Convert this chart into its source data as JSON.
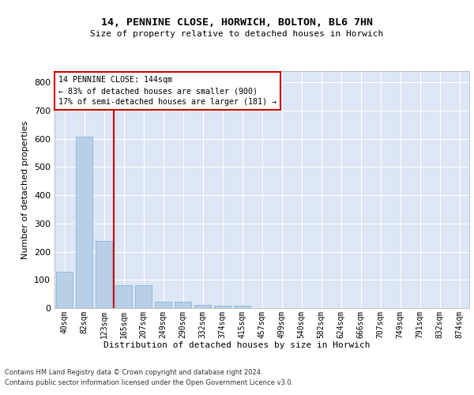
{
  "title": "14, PENNINE CLOSE, HORWICH, BOLTON, BL6 7HN",
  "subtitle": "Size of property relative to detached houses in Horwich",
  "xlabel": "Distribution of detached houses by size in Horwich",
  "ylabel": "Number of detached properties",
  "bar_color": "#b8cfe8",
  "bar_edge_color": "#7aafd4",
  "categories": [
    "40sqm",
    "82sqm",
    "123sqm",
    "165sqm",
    "207sqm",
    "249sqm",
    "290sqm",
    "332sqm",
    "374sqm",
    "415sqm",
    "457sqm",
    "499sqm",
    "540sqm",
    "582sqm",
    "624sqm",
    "666sqm",
    "707sqm",
    "749sqm",
    "791sqm",
    "832sqm",
    "874sqm"
  ],
  "values": [
    130,
    608,
    238,
    80,
    80,
    22,
    22,
    12,
    8,
    8,
    0,
    0,
    0,
    0,
    0,
    0,
    0,
    0,
    0,
    0,
    0
  ],
  "ylim": [
    0,
    840
  ],
  "yticks": [
    0,
    100,
    200,
    300,
    400,
    500,
    600,
    700,
    800
  ],
  "property_line_x": 2.5,
  "annotation_line1": "14 PENNINE CLOSE: 144sqm",
  "annotation_line2": "← 83% of detached houses are smaller (900)",
  "annotation_line3": "17% of semi-detached houses are larger (181) →",
  "annotation_box_facecolor": "#ffffff",
  "annotation_box_edgecolor": "#cc0000",
  "line_color": "#cc0000",
  "background_color": "#dce6f5",
  "grid_color": "#ffffff",
  "footer_line1": "Contains HM Land Registry data © Crown copyright and database right 2024.",
  "footer_line2": "Contains public sector information licensed under the Open Government Licence v3.0."
}
